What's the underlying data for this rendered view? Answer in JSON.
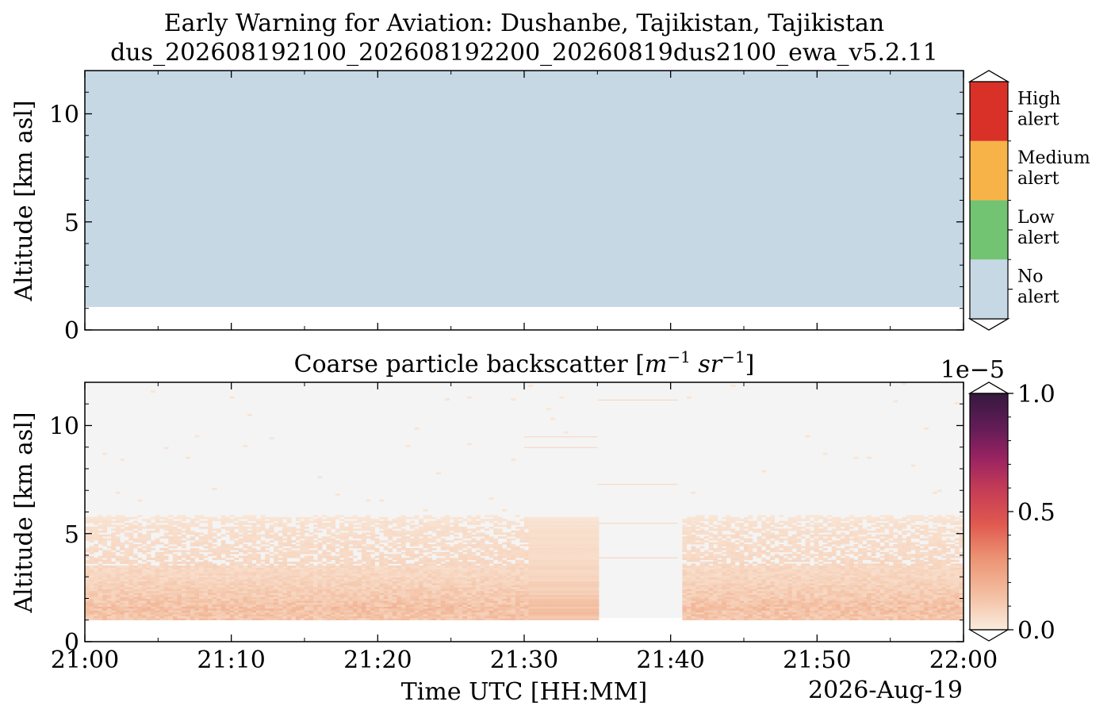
{
  "figure": {
    "title_line1": "Early Warning for Aviation: Dushanbe, Tajikistan, Tajikistan",
    "title_line2": "dus_202608192100_202608192200_20260819dus2100_ewa_v5.2.11",
    "date_label": "2026-Aug-19"
  },
  "chart_data": [
    {
      "type": "heatmap",
      "panel": "alert",
      "title": "",
      "ylabel": "Altitude [km asl]",
      "xlim": [
        "21:00",
        "22:00"
      ],
      "ylim": [
        0,
        12
      ],
      "yticks": [
        "0",
        "5",
        "10"
      ],
      "data_bottom_km": 1.0,
      "data_top_km": 12.0,
      "level_everywhere": "No alert",
      "colorbar": {
        "levels": [
          {
            "label": "No alert",
            "label_lines": [
              "No",
              "alert"
            ],
            "color": "#c6d8e4"
          },
          {
            "label": "Low alert",
            "label_lines": [
              "Low",
              "alert"
            ],
            "color": "#72c473"
          },
          {
            "label": "Medium alert",
            "label_lines": [
              "Medium",
              "alert"
            ],
            "color": "#f7b348"
          },
          {
            "label": "High alert",
            "label_lines": [
              "High",
              "alert"
            ],
            "color": "#d93127"
          }
        ]
      }
    },
    {
      "type": "heatmap",
      "panel": "backscatter",
      "title": "Coarse particle backscatter [m⁻¹ sr⁻¹]",
      "title_text": "Coarse particle backscatter [",
      "title_m": "m",
      "title_m_exp": "−1",
      "title_sr": "sr",
      "title_sr_exp": "−1",
      "title_close": "]",
      "xlabel": "Time UTC [HH:MM]",
      "ylabel": "Altitude [km asl]",
      "xticks": [
        "21:00",
        "21:10",
        "21:20",
        "21:30",
        "21:40",
        "21:50",
        "22:00"
      ],
      "yticks": [
        "0",
        "5",
        "10"
      ],
      "xlim": [
        "21:00",
        "22:00"
      ],
      "ylim": [
        0,
        12
      ],
      "data_bottom_km": 1.0,
      "gap": {
        "start": "21:35",
        "end": "21:40.5"
      },
      "uniform_segment": {
        "start": "21:30",
        "end": "21:35"
      },
      "profile_km_vs_value": [
        [
          1.0,
          0.12
        ],
        [
          1.5,
          0.14
        ],
        [
          2.0,
          0.11
        ],
        [
          2.5,
          0.09
        ],
        [
          3.0,
          0.07
        ],
        [
          3.5,
          0.06
        ],
        [
          4.0,
          0.05
        ],
        [
          4.5,
          0.045
        ],
        [
          5.0,
          0.04
        ],
        [
          5.5,
          0.03
        ],
        [
          6.0,
          0.0
        ]
      ],
      "colorbar": {
        "min": 0.0,
        "max": 1.0,
        "ticks": [
          "0.0",
          "0.5",
          "1.0"
        ],
        "scale_label": "1e−5",
        "colormap": "rocket_r",
        "background_color": "#f4f4f4"
      }
    }
  ]
}
